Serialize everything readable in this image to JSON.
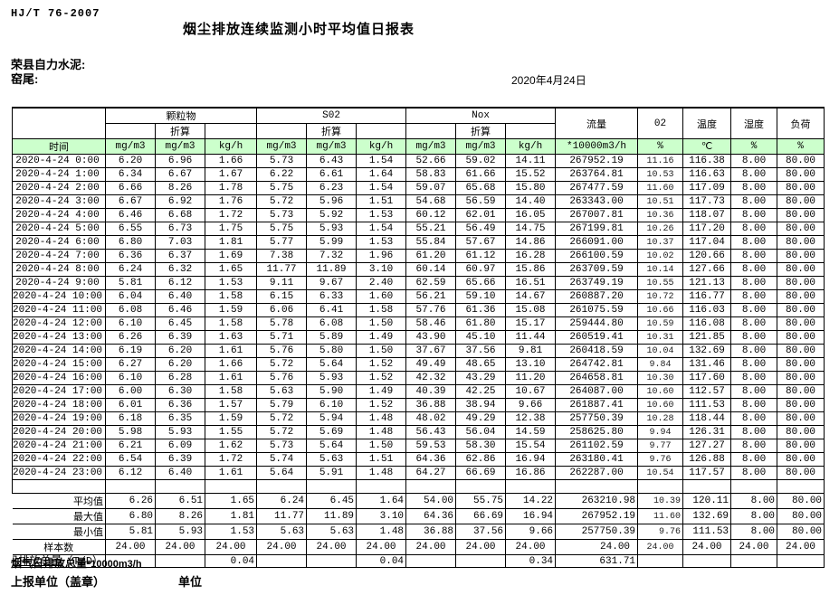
{
  "colors": {
    "header_green": "#ccffcc",
    "border": "#000000",
    "background": "#ffffff"
  },
  "page": {
    "standard": "HJ/T  76-2007",
    "title": "烟尘排放连续监测小时平均值日报表",
    "company": "荣县自力水泥:",
    "location": "窑尾:",
    "date": "2020年4月24日"
  },
  "table": {
    "time_header": "时间",
    "converted_label": "折算",
    "groups": [
      {
        "label": "颗粒物",
        "span": 3
      },
      {
        "label": "S02",
        "span": 3
      },
      {
        "label": "Nox",
        "span": 3
      },
      {
        "label": "流量",
        "span": 1
      },
      {
        "label": "02",
        "span": 1
      },
      {
        "label": "温度",
        "span": 1
      },
      {
        "label": "湿度",
        "span": 1
      },
      {
        "label": "负荷",
        "span": 1
      }
    ],
    "units": [
      "mg/m3",
      "mg/m3",
      "kg/h",
      "mg/m3",
      "mg/m3",
      "kg/h",
      "mg/m3",
      "mg/m3",
      "kg/h",
      "*10000m3/h",
      "%",
      "℃",
      "%",
      "%"
    ],
    "rows": [
      [
        "2020-4-24 0:00",
        "6.20",
        "6.96",
        "1.66",
        "5.73",
        "6.43",
        "1.54",
        "52.66",
        "59.02",
        "14.11",
        "267952.19",
        "11.16",
        "116.38",
        "8.00",
        "80.00"
      ],
      [
        "2020-4-24 1:00",
        "6.34",
        "6.67",
        "1.67",
        "6.22",
        "6.61",
        "1.64",
        "58.83",
        "61.66",
        "15.52",
        "263764.81",
        "10.53",
        "116.63",
        "8.00",
        "80.00"
      ],
      [
        "2020-4-24 2:00",
        "6.66",
        "8.26",
        "1.78",
        "5.75",
        "6.23",
        "1.54",
        "59.07",
        "65.68",
        "15.80",
        "267477.59",
        "11.60",
        "117.09",
        "8.00",
        "80.00"
      ],
      [
        "2020-4-24 3:00",
        "6.67",
        "6.92",
        "1.76",
        "5.72",
        "5.96",
        "1.51",
        "54.68",
        "56.59",
        "14.40",
        "263343.00",
        "10.51",
        "117.73",
        "8.00",
        "80.00"
      ],
      [
        "2020-4-24 4:00",
        "6.46",
        "6.68",
        "1.72",
        "5.73",
        "5.92",
        "1.53",
        "60.12",
        "62.01",
        "16.05",
        "267007.81",
        "10.36",
        "118.07",
        "8.00",
        "80.00"
      ],
      [
        "2020-4-24 5:00",
        "6.55",
        "6.73",
        "1.75",
        "5.75",
        "5.93",
        "1.54",
        "55.21",
        "56.49",
        "14.75",
        "267199.81",
        "10.26",
        "117.20",
        "8.00",
        "80.00"
      ],
      [
        "2020-4-24 6:00",
        "6.80",
        "7.03",
        "1.81",
        "5.77",
        "5.99",
        "1.53",
        "55.84",
        "57.67",
        "14.86",
        "266091.00",
        "10.37",
        "117.04",
        "8.00",
        "80.00"
      ],
      [
        "2020-4-24 7:00",
        "6.36",
        "6.37",
        "1.69",
        "7.38",
        "7.32",
        "1.96",
        "61.20",
        "61.12",
        "16.28",
        "266100.59",
        "10.02",
        "120.66",
        "8.00",
        "80.00"
      ],
      [
        "2020-4-24 8:00",
        "6.24",
        "6.32",
        "1.65",
        "11.77",
        "11.89",
        "3.10",
        "60.14",
        "60.97",
        "15.86",
        "263709.59",
        "10.14",
        "127.66",
        "8.00",
        "80.00"
      ],
      [
        "2020-4-24 9:00",
        "5.81",
        "6.12",
        "1.53",
        "9.11",
        "9.67",
        "2.40",
        "62.59",
        "65.66",
        "16.51",
        "263749.19",
        "10.55",
        "121.13",
        "8.00",
        "80.00"
      ],
      [
        "2020-4-24 10:00",
        "6.04",
        "6.40",
        "1.58",
        "6.15",
        "6.33",
        "1.60",
        "56.21",
        "59.10",
        "14.67",
        "260887.20",
        "10.72",
        "116.77",
        "8.00",
        "80.00"
      ],
      [
        "2020-4-24 11:00",
        "6.08",
        "6.46",
        "1.59",
        "6.06",
        "6.41",
        "1.58",
        "57.76",
        "61.36",
        "15.08",
        "261075.59",
        "10.66",
        "116.03",
        "8.00",
        "80.00"
      ],
      [
        "2020-4-24 12:00",
        "6.10",
        "6.45",
        "1.58",
        "5.78",
        "6.08",
        "1.50",
        "58.46",
        "61.80",
        "15.17",
        "259444.80",
        "10.59",
        "116.08",
        "8.00",
        "80.00"
      ],
      [
        "2020-4-24 13:00",
        "6.26",
        "6.39",
        "1.63",
        "5.71",
        "5.89",
        "1.49",
        "43.90",
        "45.10",
        "11.44",
        "260519.41",
        "10.31",
        "121.85",
        "8.00",
        "80.00"
      ],
      [
        "2020-4-24 14:00",
        "6.19",
        "6.20",
        "1.61",
        "5.76",
        "5.80",
        "1.50",
        "37.67",
        "37.56",
        "9.81",
        "260418.59",
        "10.04",
        "132.69",
        "8.00",
        "80.00"
      ],
      [
        "2020-4-24 15:00",
        "6.27",
        "6.20",
        "1.66",
        "5.72",
        "5.64",
        "1.52",
        "49.49",
        "48.65",
        "13.10",
        "264742.81",
        "9.84",
        "131.46",
        "8.00",
        "80.00"
      ],
      [
        "2020-4-24 16:00",
        "6.10",
        "6.28",
        "1.61",
        "5.76",
        "5.93",
        "1.52",
        "42.32",
        "43.29",
        "11.20",
        "264658.81",
        "10.30",
        "117.60",
        "8.00",
        "80.00"
      ],
      [
        "2020-4-24 17:00",
        "6.00",
        "6.30",
        "1.58",
        "5.63",
        "5.90",
        "1.49",
        "40.39",
        "42.25",
        "10.67",
        "264087.00",
        "10.60",
        "112.57",
        "8.00",
        "80.00"
      ],
      [
        "2020-4-24 18:00",
        "6.01",
        "6.36",
        "1.57",
        "5.79",
        "6.10",
        "1.52",
        "36.88",
        "38.94",
        "9.66",
        "261887.41",
        "10.60",
        "111.53",
        "8.00",
        "80.00"
      ],
      [
        "2020-4-24 19:00",
        "6.18",
        "6.35",
        "1.59",
        "5.72",
        "5.94",
        "1.48",
        "48.02",
        "49.29",
        "12.38",
        "257750.39",
        "10.28",
        "118.44",
        "8.00",
        "80.00"
      ],
      [
        "2020-4-24 20:00",
        "5.98",
        "5.93",
        "1.55",
        "5.72",
        "5.69",
        "1.48",
        "56.43",
        "56.04",
        "14.59",
        "258625.80",
        "9.94",
        "126.31",
        "8.00",
        "80.00"
      ],
      [
        "2020-4-24 21:00",
        "6.21",
        "6.09",
        "1.62",
        "5.73",
        "5.64",
        "1.50",
        "59.53",
        "58.30",
        "15.54",
        "261102.59",
        "9.77",
        "127.27",
        "8.00",
        "80.00"
      ],
      [
        "2020-4-24 22:00",
        "6.54",
        "6.39",
        "1.72",
        "5.74",
        "5.63",
        "1.51",
        "64.36",
        "62.86",
        "16.94",
        "263180.41",
        "9.76",
        "126.88",
        "8.00",
        "80.00"
      ],
      [
        "2020-4-24 23:00",
        "6.12",
        "6.40",
        "1.61",
        "5.64",
        "5.91",
        "1.48",
        "64.27",
        "66.69",
        "16.86",
        "262287.00",
        "10.54",
        "117.57",
        "8.00",
        "80.00"
      ]
    ],
    "summary": [
      {
        "label": "平均值",
        "values": [
          "6.26",
          "6.51",
          "1.65",
          "6.24",
          "6.45",
          "1.64",
          "54.00",
          "55.75",
          "14.22",
          "263210.98",
          "10.39",
          "120.11",
          "8.00",
          "80.00"
        ]
      },
      {
        "label": "最大值",
        "values": [
          "6.80",
          "8.26",
          "1.81",
          "11.77",
          "11.89",
          "3.10",
          "64.36",
          "66.69",
          "16.94",
          "267952.19",
          "11.60",
          "132.69",
          "8.00",
          "80.00"
        ]
      },
      {
        "label": "最小值",
        "values": [
          "5.81",
          "5.93",
          "1.53",
          "5.63",
          "5.63",
          "1.48",
          "36.88",
          "37.56",
          "9.66",
          "257750.39",
          "9.76",
          "111.53",
          "8.00",
          "80.00"
        ]
      },
      {
        "label": "样本数",
        "values": [
          "24.00",
          "24.00",
          "24.00",
          "24.00",
          "24.00",
          "24.00",
          "24.00",
          "24.00",
          "24.00",
          "24.00",
          "24.00",
          "24.00",
          "24.00",
          "24.00"
        ]
      }
    ],
    "total": {
      "label": "日排放总量",
      "label_suffix": "（T/D）",
      "values": [
        "",
        "",
        "0.04",
        "",
        "",
        "0.04",
        "",
        "",
        "0.34",
        "631.71",
        "",
        "",
        "",
        ""
      ]
    }
  },
  "footer": {
    "flow_note_cjk": "烟气日排放总量",
    "flow_note_ascii": "*10000m3/h",
    "report_unit": "上报单位（盖章）",
    "unit": "单位"
  }
}
